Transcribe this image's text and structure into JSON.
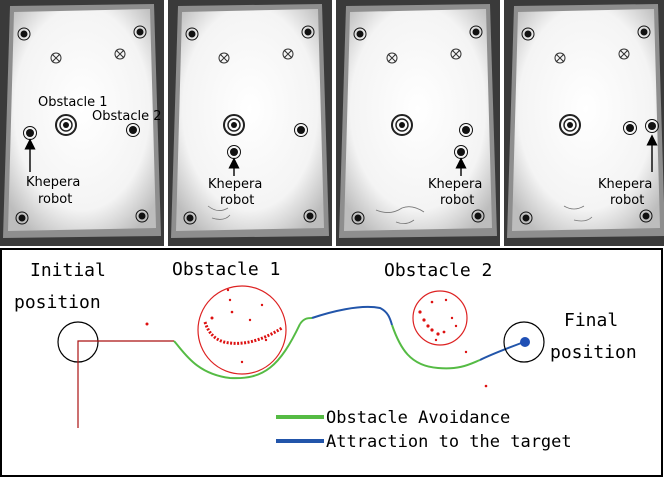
{
  "photos": {
    "obstacle1_label": "Obstacle 1",
    "obstacle2_label": "Obstacle 2",
    "robot_label_line1": "Khepera",
    "robot_label_line2": "robot"
  },
  "trajectory": {
    "initial_line1": "Initial",
    "initial_line2": "position",
    "obstacle1": "Obstacle 1",
    "obstacle2": "Obstacle 2",
    "final_line1": "Final",
    "final_line2": "position",
    "legend": [
      {
        "label": "Obstacle Avoidance",
        "color": "#55bb44"
      },
      {
        "label": "Attraction to the target",
        "color": "#2255aa"
      }
    ],
    "colors": {
      "path": "#aa1111",
      "sensor_points": "#dd1111",
      "target": "#1f4fb5"
    }
  }
}
